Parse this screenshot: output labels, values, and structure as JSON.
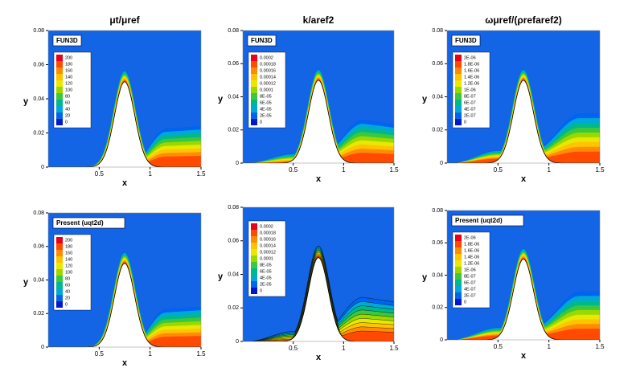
{
  "chart_data": [
    {
      "type": "contour",
      "title": "μt/μref",
      "label": "FUN3D",
      "xlabel": "x",
      "ylabel": "y",
      "xlim": [
        0,
        1.5
      ],
      "ylim": [
        0,
        0.08
      ],
      "xticks": [
        0.5,
        1,
        1.5
      ],
      "yticks": [
        0,
        0.02,
        0.04,
        0.06,
        0.08
      ],
      "colorbar": {
        "labels": [
          200,
          180,
          160,
          140,
          120,
          100,
          80,
          60,
          40,
          20,
          0
        ],
        "colors": [
          "#e8001c",
          "#ff4a00",
          "#ff8c00",
          "#ffc400",
          "#e8e800",
          "#9ad800",
          "#3cc83c",
          "#00b88c",
          "#00a8d8",
          "#0064f0",
          "#0018c8"
        ]
      }
    },
    {
      "type": "contour",
      "title": "k/aref2",
      "label": "FUN3D",
      "xlabel": "x",
      "ylabel": "y",
      "xlim": [
        0,
        1.5
      ],
      "ylim": [
        0,
        0.08
      ],
      "xticks": [
        0.5,
        1,
        1.5
      ],
      "yticks": [
        0,
        0.02,
        0.04,
        0.06,
        0.08
      ],
      "colorbar": {
        "labels": [
          0.0002,
          0.00018,
          0.00016,
          0.00014,
          0.00012,
          0.0001,
          {
            "value": 8e-05,
            "label": "8E-05"
          },
          {
            "value": 6e-05,
            "label": "6E-05"
          },
          {
            "value": 4e-05,
            "label": "4E-05"
          },
          {
            "value": 2e-05,
            "label": "2E-05"
          },
          0
        ],
        "colors": [
          "#e8001c",
          "#ff4a00",
          "#ff8c00",
          "#ffc400",
          "#e8e800",
          "#9ad800",
          "#3cc83c",
          "#00b88c",
          "#00a8d8",
          "#0064f0",
          "#0018c8"
        ]
      }
    },
    {
      "type": "contour",
      "title": "ωμref/(ρrefaref2)",
      "label": "FUN3D",
      "xlabel": "x",
      "ylabel": "y",
      "xlim": [
        0,
        1.5
      ],
      "ylim": [
        0,
        0.08
      ],
      "xticks": [
        0.5,
        1,
        1.5
      ],
      "yticks": [
        0,
        0.02,
        0.04,
        0.06,
        0.08
      ],
      "colorbar": {
        "labels": [
          {
            "value": 2e-06,
            "label": "2E-06"
          },
          {
            "value": 1.8e-06,
            "label": "1.8E-06"
          },
          {
            "value": 1.6e-06,
            "label": "1.6E-06"
          },
          {
            "value": 1.4e-06,
            "label": "1.4E-06"
          },
          {
            "value": 1.2e-06,
            "label": "1.2E-06"
          },
          {
            "value": 1e-06,
            "label": "1E-06"
          },
          {
            "value": 8e-07,
            "label": "8E-07"
          },
          {
            "value": 6e-07,
            "label": "6E-07"
          },
          {
            "value": 4e-07,
            "label": "4E-07"
          },
          {
            "value": 2e-07,
            "label": "2E-07"
          },
          0
        ],
        "colors": [
          "#e8001c",
          "#ff4a00",
          "#ff8c00",
          "#ffc400",
          "#e8e800",
          "#9ad800",
          "#3cc83c",
          "#00b88c",
          "#00a8d8",
          "#0064f0",
          "#0018c8"
        ]
      }
    },
    {
      "type": "contour",
      "label": "Present (uqt2d)",
      "xlabel": "x",
      "ylabel": "y",
      "xlim": [
        0,
        1.5
      ],
      "ylim": [
        0,
        0.08
      ],
      "xticks": [
        0.5,
        1,
        1.5
      ],
      "yticks": [
        0,
        0.02,
        0.04,
        0.06,
        0.08
      ],
      "colorbar": {
        "labels": [
          200,
          180,
          160,
          140,
          120,
          100,
          80,
          60,
          40,
          20,
          0
        ],
        "colors": [
          "#e8001c",
          "#ff4a00",
          "#ff8c00",
          "#ffc400",
          "#e8e800",
          "#9ad800",
          "#3cc83c",
          "#00b88c",
          "#00a8d8",
          "#0064f0",
          "#0018c8"
        ]
      }
    },
    {
      "type": "contour",
      "xlabel": "x",
      "ylabel": "y",
      "xlim": [
        0,
        1.5
      ],
      "ylim": [
        0,
        0.08
      ],
      "xticks": [
        0.5,
        1,
        1.5
      ],
      "yticks": [
        0,
        0.02,
        0.04,
        0.06,
        0.08
      ],
      "colorbar": {
        "labels": [
          0.0002,
          0.00018,
          0.00016,
          0.00014,
          0.00012,
          0.0001,
          {
            "value": 8e-05,
            "label": "8E-05"
          },
          {
            "value": 6e-05,
            "label": "6E-05"
          },
          {
            "value": 4e-05,
            "label": "4E-05"
          },
          {
            "value": 2e-05,
            "label": "2E-05"
          },
          0
        ],
        "colors": [
          "#e8001c",
          "#ff4a00",
          "#ff8c00",
          "#ffc400",
          "#e8e800",
          "#9ad800",
          "#3cc83c",
          "#00b88c",
          "#00a8d8",
          "#0064f0",
          "#0018c8"
        ]
      }
    },
    {
      "type": "contour",
      "label": "Present (uqt2d)",
      "xlabel": "x",
      "ylabel": "y",
      "xlim": [
        0,
        1.5
      ],
      "ylim": [
        0,
        0.08
      ],
      "xticks": [
        0.5,
        1,
        1.5
      ],
      "yticks": [
        0,
        0.02,
        0.04,
        0.06,
        0.08
      ],
      "colorbar": {
        "labels": [
          {
            "value": 2e-06,
            "label": "2E-06"
          },
          {
            "value": 1.8e-06,
            "label": "1.8E-06"
          },
          {
            "value": 1.6e-06,
            "label": "1.6E-06"
          },
          {
            "value": 1.4e-06,
            "label": "1.4E-06"
          },
          {
            "value": 1.2e-06,
            "label": "1.2E-06"
          },
          {
            "value": 1e-06,
            "label": "1E-06"
          },
          {
            "value": 8e-07,
            "label": "8E-07"
          },
          {
            "value": 6e-07,
            "label": "6E-07"
          },
          {
            "value": 4e-07,
            "label": "4E-07"
          },
          {
            "value": 2e-07,
            "label": "2E-07"
          },
          0
        ],
        "colors": [
          "#e8001c",
          "#ff4a00",
          "#ff8c00",
          "#ffc400",
          "#e8e800",
          "#9ad800",
          "#3cc83c",
          "#00b88c",
          "#00a8d8",
          "#0064f0",
          "#0018c8"
        ]
      }
    }
  ]
}
